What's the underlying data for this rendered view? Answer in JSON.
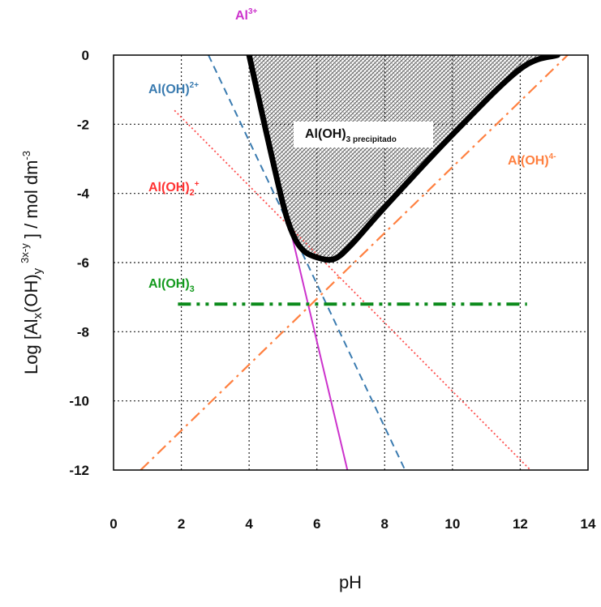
{
  "chart_data": {
    "type": "line",
    "title": "",
    "xlabel": "pH",
    "ylabel": "Log [Alx(OH)y 3x-y ] / mol dm-3",
    "xlim": [
      0,
      14
    ],
    "ylim": [
      -12,
      0
    ],
    "xticks": [
      0,
      2,
      4,
      6,
      8,
      10,
      12,
      14
    ],
    "yticks": [
      0,
      -2,
      -4,
      -6,
      -8,
      -10,
      -12
    ],
    "grid": true,
    "grid_style": "dotted",
    "series": [
      {
        "name": "Al3+",
        "color": "#cc33cc",
        "dash": "solid",
        "width": 2,
        "x": [
          4.0,
          6.9
        ],
        "y": [
          0.0,
          -12.0
        ]
      },
      {
        "name": "Al(OH)2+",
        "color": "#3a7bb0",
        "dash": "dashed",
        "width": 2,
        "x": [
          2.8,
          8.6
        ],
        "y": [
          0.0,
          -12.0
        ]
      },
      {
        "name": "Al(OH)2 +",
        "color": "#ff4d4d",
        "dash": "dotted",
        "width": 1.8,
        "x": [
          1.8,
          12.3
        ],
        "y": [
          -1.6,
          -12.0
        ]
      },
      {
        "name": "Al(OH)3",
        "color": "#0b8a1a",
        "dash": "dashdotdot",
        "width": 4,
        "x": [
          1.9,
          12.2
        ],
        "y": [
          -7.2,
          -7.2
        ]
      },
      {
        "name": "Al(OH)4-",
        "color": "#ff8040",
        "dash": "dashdot",
        "width": 2.2,
        "x": [
          0.8,
          13.4
        ],
        "y": [
          -12.0,
          0.0
        ]
      }
    ],
    "boundary": {
      "color": "#000000",
      "width": 7,
      "x": [
        4.0,
        4.5,
        5.0,
        5.3,
        5.6,
        6.0,
        6.5,
        7.0,
        8.0,
        10.0,
        12.0,
        13.1
      ],
      "y": [
        0.0,
        -2.2,
        -4.3,
        -5.2,
        -5.65,
        -5.85,
        -5.9,
        -5.5,
        -4.4,
        -2.3,
        -0.4,
        0.0
      ]
    },
    "labels": {
      "al3": {
        "main": "Al",
        "sup": "3+",
        "color": "#cc33cc"
      },
      "aloh": {
        "main": "Al(OH)",
        "sup": "2+",
        "color": "#3a7bb0"
      },
      "aloh2": {
        "main": "Al(OH)",
        "sub": "2",
        "sup": "+",
        "color": "#ff3333"
      },
      "aloh3": {
        "main": "Al(OH)",
        "sub": "3",
        "color": "#149a1e"
      },
      "aloh4": {
        "main": "Al(OH)",
        "sup": "4-",
        "color": "#ff8040"
      },
      "precip": {
        "main": "Al(OH)",
        "sub": "3 precipitado",
        "color": "#111111"
      }
    },
    "ylabel_parts": {
      "prefix": "Log [Al",
      "sub_x": "x",
      "mid": "(OH)",
      "sub_y": "y",
      "sup": "3x-y",
      "suffix": " ] / mol dm",
      "sup_end": "-3"
    }
  }
}
